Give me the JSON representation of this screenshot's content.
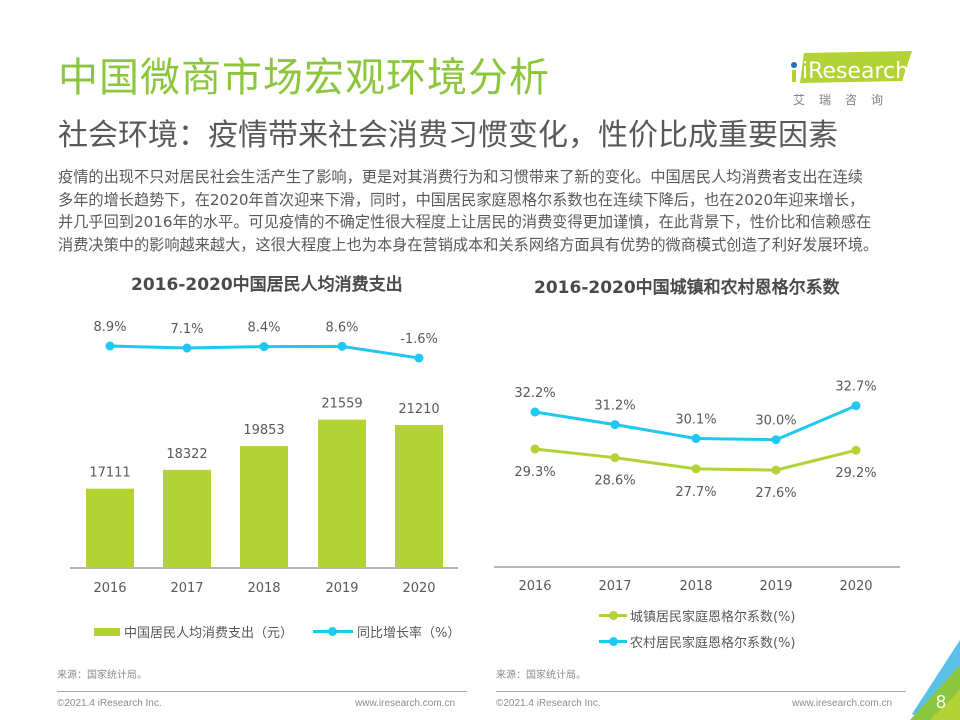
{
  "header": {
    "title": "中国微商市场宏观环境分析",
    "subtitle": "社会环境：疫情带来社会消费习惯变化，性价比成重要因素",
    "logo_text": "iResearch",
    "logo_cn": "艾瑞咨询"
  },
  "body": {
    "lines": [
      "疫情的出现不只对居民社会生活产生了影响，更是对其消费行为和习惯带来了新的变化。中国居民人均消费者支出在连续",
      "多年的增长趋势下，在2020年首次迎来下滑，同时，中国居民家庭恩格尔系数也在连续下降后，也在2020年迎来增长，",
      "并几乎回到2016年的水平。可见疫情的不确定性很大程度上让居民的消费变得更加谨慎，在此背景下，性价比和信赖感在",
      "消费决策中的影响越来越大，这很大程度上也为本身在营销成本和关系网络方面具有优势的微商模式创造了利好发展环境。"
    ]
  },
  "colors": {
    "green": "#b2d235",
    "blue": "#1ec8f0",
    "title_green": "#8cc63f"
  },
  "chart_data": [
    {
      "type": "bar",
      "title": "2016-2020中国居民人均消费支出",
      "categories": [
        "2016",
        "2017",
        "2018",
        "2019",
        "2020"
      ],
      "series": [
        {
          "name": "中国居民人均消费支出（元）",
          "type": "bar",
          "values": [
            17111,
            18322,
            19853,
            21559,
            21210
          ],
          "labels": [
            "17111",
            "18322",
            "19853",
            "21559",
            "21210"
          ]
        },
        {
          "name": "同比增长率（%）",
          "type": "line",
          "values": [
            8.9,
            7.1,
            8.4,
            8.6,
            -1.6
          ],
          "labels": [
            "8.9%",
            "7.1%",
            "8.4%",
            "8.6%",
            "-1.6%"
          ]
        }
      ],
      "legend": [
        "中国居民人均消费支出（元）",
        "同比增长率（%）"
      ],
      "legend_position": "bottom",
      "grid": false,
      "source": "来源：国家统计局。"
    },
    {
      "type": "line",
      "title": "2016-2020中国城镇和农村恩格尔系数",
      "categories": [
        "2016",
        "2017",
        "2018",
        "2019",
        "2020"
      ],
      "series": [
        {
          "name": "城镇居民家庭恩格尔系数(%)",
          "values": [
            29.3,
            28.6,
            27.7,
            27.6,
            29.2
          ],
          "labels": [
            "29.3%",
            "28.6%",
            "27.7%",
            "27.6%",
            "29.2%"
          ]
        },
        {
          "name": "农村居民家庭恩格尔系数(%)",
          "values": [
            32.2,
            31.2,
            30.1,
            30.0,
            32.7
          ],
          "labels": [
            "32.2%",
            "31.2%",
            "30.1%",
            "30.0%",
            "32.7%"
          ]
        }
      ],
      "legend": [
        "城镇居民家庭恩格尔系数(%)",
        "农村居民家庭恩格尔系数(%)"
      ],
      "legend_position": "bottom",
      "grid": false,
      "source": "来源：国家统计局。"
    }
  ],
  "footer": {
    "copyright": "©2021.4 iResearch Inc.",
    "website": "www.iresearch.com.cn",
    "page_number": "8"
  }
}
